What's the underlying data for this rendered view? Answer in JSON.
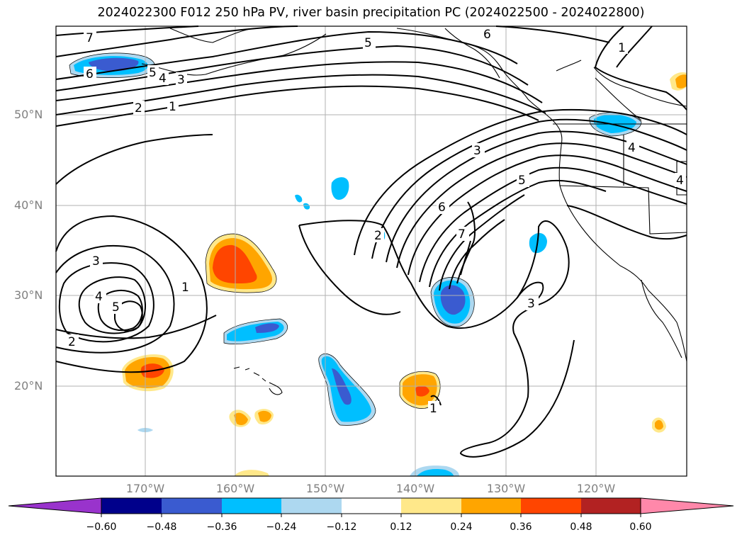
{
  "title": "2024022300 F012 250 hPa PV, river basin precipitation PC (2024022500 - 2024022800)",
  "latitude_labels": [
    "50°N",
    "40°N",
    "30°N",
    "20°N"
  ],
  "longitude_labels": [
    "170°W",
    "160°W",
    "150°W",
    "140°W",
    "130°W",
    "120°W"
  ],
  "colorbar": {
    "tick_labels": [
      "−0.60",
      "−0.48",
      "−0.36",
      "−0.24",
      "−0.12",
      "0.12",
      "0.24",
      "0.36",
      "0.48",
      "0.60"
    ],
    "colors": [
      "#9933cc",
      "#00008b",
      "#3a5bd0",
      "#00bfff",
      "#add8f0",
      "#ffffff",
      "#ffe88a",
      "#ffa500",
      "#ff4500",
      "#b22222",
      "#ff88aa"
    ]
  },
  "contour_labels": [
    "7",
    "6",
    "5",
    "4",
    "3",
    "2",
    "1",
    "5",
    "6",
    "1",
    "3",
    "4",
    "5",
    "6",
    "7",
    "2",
    "3",
    "4",
    "5",
    "2",
    "1",
    "1",
    "3",
    "4"
  ],
  "colors": {
    "positive_light": "#ffe88a",
    "positive_mid": "#ffa500",
    "positive_strong": "#ff4500",
    "negative_light": "#add8f0",
    "negative_mid": "#00bfff",
    "negative_strong": "#3a5bd0"
  }
}
